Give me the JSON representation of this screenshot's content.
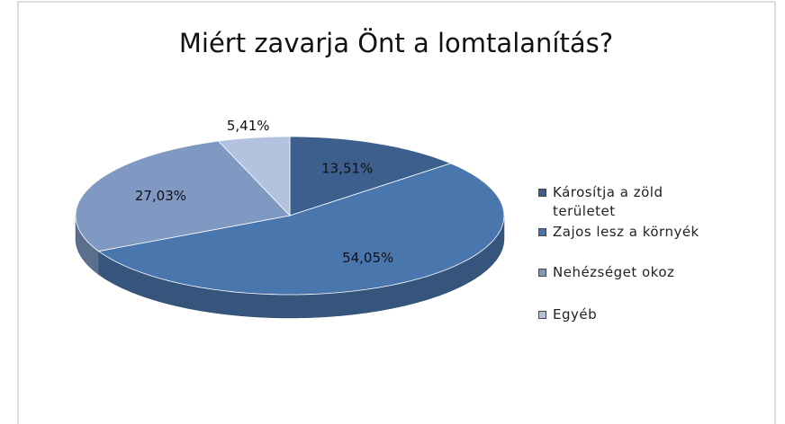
{
  "chart_data": {
    "type": "pie3d",
    "title": "Miért zavarja Önt a lomtalanítás?",
    "categories": [
      "Károsítja a zöld területet",
      "Zajos lesz a környék",
      "Nehézséget okoz",
      "Egyéb"
    ],
    "values": [
      13.51,
      54.05,
      27.03,
      5.41
    ],
    "value_labels": [
      "13,51%",
      "54,05%",
      "27,03%",
      "5,41%"
    ],
    "colors": [
      "#3c5f8e",
      "#4a76ae",
      "#7f99c3",
      "#b3c3df"
    ],
    "legend": "right"
  }
}
